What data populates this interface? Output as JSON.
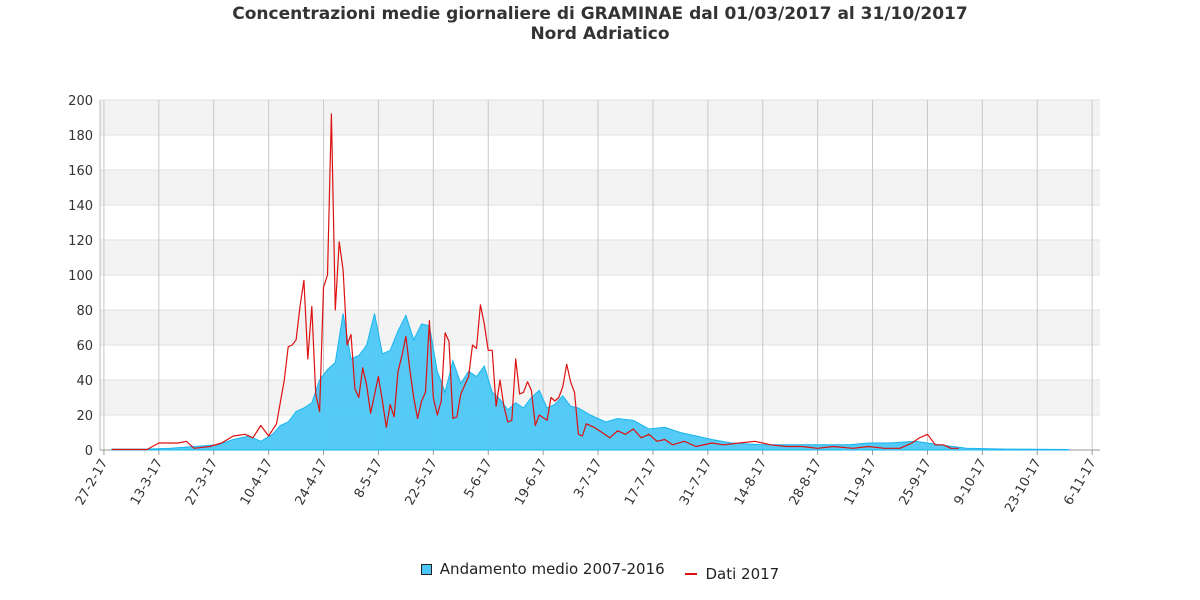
{
  "title": {
    "line1": "Concentrazioni medie giornaliere di GRAMINAE dal 01/03/2017 al 31/10/2017",
    "line2": "Nord Adriatico"
  },
  "legend": {
    "area_label": "Andamento medio 2007-2016",
    "line_label": "Dati 2017",
    "placement": "bottom-center"
  },
  "colors": {
    "area_fill": "#4cc7f5",
    "area_stroke": "#19b5ee",
    "line": "#dd1111",
    "band": "#f3f3f3",
    "grid": "#c8c8c8"
  },
  "chart_data": {
    "type": "area",
    "title": "Concentrazioni medie giornaliere di GRAMINAE dal 01/03/2017 al 31/10/2017",
    "subtitle": "Nord Adriatico",
    "xlabel": "",
    "ylabel": "",
    "grid": true,
    "x_axis": {
      "type": "date",
      "range": [
        "2017-02-26",
        "2017-11-08"
      ],
      "tick_dates": [
        "2017-02-27",
        "2017-03-13",
        "2017-03-27",
        "2017-04-10",
        "2017-04-24",
        "2017-05-08",
        "2017-05-22",
        "2017-06-05",
        "2017-06-19",
        "2017-07-03",
        "2017-07-17",
        "2017-07-31",
        "2017-08-14",
        "2017-08-28",
        "2017-09-11",
        "2017-09-25",
        "2017-10-09",
        "2017-10-23",
        "2017-11-06"
      ],
      "tick_labels": [
        "27-2-17",
        "13-3-17",
        "27-3-17",
        "10-4-17",
        "24-4-17",
        "8-5-17",
        "22-5-17",
        "5-6-17",
        "19-6-17",
        "3-7-17",
        "17-7-17",
        "31-7-17",
        "14-8-17",
        "28-8-17",
        "11-9-17",
        "25-9-17",
        "9-10-17",
        "23-10-17",
        "6-11-17"
      ]
    },
    "y_axis": {
      "range": [
        0,
        200
      ],
      "ticks": [
        0,
        20,
        40,
        60,
        80,
        100,
        120,
        140,
        160,
        180,
        200
      ]
    },
    "series": [
      {
        "name": "Andamento medio 2007-2016",
        "kind": "area",
        "points": [
          [
            "2017-03-01",
            0.5
          ],
          [
            "2017-03-10",
            0.5
          ],
          [
            "2017-03-16",
            1
          ],
          [
            "2017-03-22",
            2
          ],
          [
            "2017-03-28",
            3
          ],
          [
            "2017-04-01",
            6
          ],
          [
            "2017-04-05",
            8
          ],
          [
            "2017-04-08",
            5
          ],
          [
            "2017-04-11",
            9
          ],
          [
            "2017-04-13",
            14
          ],
          [
            "2017-04-15",
            16
          ],
          [
            "2017-04-17",
            22
          ],
          [
            "2017-04-19",
            24
          ],
          [
            "2017-04-21",
            27
          ],
          [
            "2017-04-23",
            40
          ],
          [
            "2017-04-25",
            46
          ],
          [
            "2017-04-27",
            50
          ],
          [
            "2017-04-29",
            78
          ],
          [
            "2017-05-01",
            52
          ],
          [
            "2017-05-03",
            54
          ],
          [
            "2017-05-05",
            60
          ],
          [
            "2017-05-07",
            78
          ],
          [
            "2017-05-09",
            55
          ],
          [
            "2017-05-11",
            57
          ],
          [
            "2017-05-13",
            68
          ],
          [
            "2017-05-15",
            77
          ],
          [
            "2017-05-17",
            63
          ],
          [
            "2017-05-19",
            72
          ],
          [
            "2017-05-21",
            71
          ],
          [
            "2017-05-23",
            45
          ],
          [
            "2017-05-25",
            33
          ],
          [
            "2017-05-27",
            51
          ],
          [
            "2017-05-29",
            38
          ],
          [
            "2017-05-31",
            45
          ],
          [
            "2017-06-02",
            42
          ],
          [
            "2017-06-04",
            48
          ],
          [
            "2017-06-06",
            33
          ],
          [
            "2017-06-08",
            29
          ],
          [
            "2017-06-10",
            23
          ],
          [
            "2017-06-12",
            27
          ],
          [
            "2017-06-14",
            24
          ],
          [
            "2017-06-16",
            30
          ],
          [
            "2017-06-18",
            34
          ],
          [
            "2017-06-20",
            24
          ],
          [
            "2017-06-22",
            26
          ],
          [
            "2017-06-24",
            31
          ],
          [
            "2017-06-26",
            25
          ],
          [
            "2017-06-28",
            24
          ],
          [
            "2017-07-01",
            20
          ],
          [
            "2017-07-05",
            16
          ],
          [
            "2017-07-08",
            18
          ],
          [
            "2017-07-12",
            17
          ],
          [
            "2017-07-16",
            12
          ],
          [
            "2017-07-20",
            13
          ],
          [
            "2017-07-24",
            10
          ],
          [
            "2017-07-28",
            8
          ],
          [
            "2017-08-01",
            6
          ],
          [
            "2017-08-06",
            4
          ],
          [
            "2017-08-14",
            3
          ],
          [
            "2017-08-24",
            3
          ],
          [
            "2017-09-05",
            3
          ],
          [
            "2017-09-10",
            4
          ],
          [
            "2017-09-15",
            4
          ],
          [
            "2017-09-22",
            5
          ],
          [
            "2017-09-28",
            3
          ],
          [
            "2017-10-05",
            1
          ],
          [
            "2017-10-15",
            0.5
          ],
          [
            "2017-10-31",
            0.3
          ]
        ]
      },
      {
        "name": "Dati 2017",
        "kind": "line",
        "points": [
          [
            "2017-03-01",
            0.3
          ],
          [
            "2017-03-10",
            0.3
          ],
          [
            "2017-03-13",
            4
          ],
          [
            "2017-03-18",
            4
          ],
          [
            "2017-03-20",
            5
          ],
          [
            "2017-03-22",
            1
          ],
          [
            "2017-03-26",
            2
          ],
          [
            "2017-03-29",
            4
          ],
          [
            "2017-04-01",
            8
          ],
          [
            "2017-04-04",
            9
          ],
          [
            "2017-04-06",
            7
          ],
          [
            "2017-04-08",
            14
          ],
          [
            "2017-04-10",
            8
          ],
          [
            "2017-04-12",
            15
          ],
          [
            "2017-04-14",
            40
          ],
          [
            "2017-04-15",
            59
          ],
          [
            "2017-04-16",
            60
          ],
          [
            "2017-04-17",
            63
          ],
          [
            "2017-04-18",
            82
          ],
          [
            "2017-04-19",
            97
          ],
          [
            "2017-04-20",
            52
          ],
          [
            "2017-04-21",
            82
          ],
          [
            "2017-04-22",
            32
          ],
          [
            "2017-04-23",
            22
          ],
          [
            "2017-04-24",
            93
          ],
          [
            "2017-04-25",
            100
          ],
          [
            "2017-04-26",
            192
          ],
          [
            "2017-04-27",
            80
          ],
          [
            "2017-04-28",
            119
          ],
          [
            "2017-04-29",
            103
          ],
          [
            "2017-04-30",
            60
          ],
          [
            "2017-05-01",
            66
          ],
          [
            "2017-05-02",
            35
          ],
          [
            "2017-05-03",
            30
          ],
          [
            "2017-05-04",
            47
          ],
          [
            "2017-05-05",
            37
          ],
          [
            "2017-05-06",
            21
          ],
          [
            "2017-05-08",
            42
          ],
          [
            "2017-05-09",
            28
          ],
          [
            "2017-05-10",
            13
          ],
          [
            "2017-05-11",
            26
          ],
          [
            "2017-05-12",
            19
          ],
          [
            "2017-05-13",
            45
          ],
          [
            "2017-05-14",
            54
          ],
          [
            "2017-05-15",
            65
          ],
          [
            "2017-05-16",
            46
          ],
          [
            "2017-05-17",
            30
          ],
          [
            "2017-05-18",
            18
          ],
          [
            "2017-05-19",
            28
          ],
          [
            "2017-05-20",
            33
          ],
          [
            "2017-05-21",
            74
          ],
          [
            "2017-05-22",
            30
          ],
          [
            "2017-05-23",
            20
          ],
          [
            "2017-05-24",
            28
          ],
          [
            "2017-05-25",
            67
          ],
          [
            "2017-05-26",
            62
          ],
          [
            "2017-05-27",
            18
          ],
          [
            "2017-05-28",
            19
          ],
          [
            "2017-05-29",
            32
          ],
          [
            "2017-05-30",
            37
          ],
          [
            "2017-05-31",
            42
          ],
          [
            "2017-06-01",
            60
          ],
          [
            "2017-06-02",
            58
          ],
          [
            "2017-06-03",
            83
          ],
          [
            "2017-06-04",
            72
          ],
          [
            "2017-06-05",
            57
          ],
          [
            "2017-06-06",
            57
          ],
          [
            "2017-06-07",
            25
          ],
          [
            "2017-06-08",
            40
          ],
          [
            "2017-06-09",
            25
          ],
          [
            "2017-06-10",
            16
          ],
          [
            "2017-06-11",
            17
          ],
          [
            "2017-06-12",
            52
          ],
          [
            "2017-06-13",
            32
          ],
          [
            "2017-06-14",
            33
          ],
          [
            "2017-06-15",
            39
          ],
          [
            "2017-06-16",
            34
          ],
          [
            "2017-06-17",
            14
          ],
          [
            "2017-06-18",
            20
          ],
          [
            "2017-06-20",
            17
          ],
          [
            "2017-06-21",
            30
          ],
          [
            "2017-06-22",
            28
          ],
          [
            "2017-06-23",
            30
          ],
          [
            "2017-06-24",
            36
          ],
          [
            "2017-06-25",
            49
          ],
          [
            "2017-06-26",
            39
          ],
          [
            "2017-06-27",
            33
          ],
          [
            "2017-06-28",
            9
          ],
          [
            "2017-06-29",
            8
          ],
          [
            "2017-06-30",
            15
          ],
          [
            "2017-07-02",
            13
          ],
          [
            "2017-07-04",
            10
          ],
          [
            "2017-07-06",
            7
          ],
          [
            "2017-07-08",
            11
          ],
          [
            "2017-07-10",
            9
          ],
          [
            "2017-07-12",
            12
          ],
          [
            "2017-07-14",
            7
          ],
          [
            "2017-07-16",
            9
          ],
          [
            "2017-07-18",
            5
          ],
          [
            "2017-07-20",
            6
          ],
          [
            "2017-07-22",
            3
          ],
          [
            "2017-07-25",
            5
          ],
          [
            "2017-07-28",
            2
          ],
          [
            "2017-08-01",
            4
          ],
          [
            "2017-08-04",
            3
          ],
          [
            "2017-08-08",
            4
          ],
          [
            "2017-08-12",
            5
          ],
          [
            "2017-08-16",
            3
          ],
          [
            "2017-08-20",
            2
          ],
          [
            "2017-08-24",
            2
          ],
          [
            "2017-08-28",
            1
          ],
          [
            "2017-09-01",
            2
          ],
          [
            "2017-09-06",
            1
          ],
          [
            "2017-09-10",
            2
          ],
          [
            "2017-09-14",
            1
          ],
          [
            "2017-09-18",
            1
          ],
          [
            "2017-09-21",
            4
          ],
          [
            "2017-09-23",
            7
          ],
          [
            "2017-09-25",
            9
          ],
          [
            "2017-09-27",
            3
          ],
          [
            "2017-09-29",
            3
          ],
          [
            "2017-10-01",
            1
          ],
          [
            "2017-10-03",
            1
          ]
        ]
      }
    ]
  }
}
